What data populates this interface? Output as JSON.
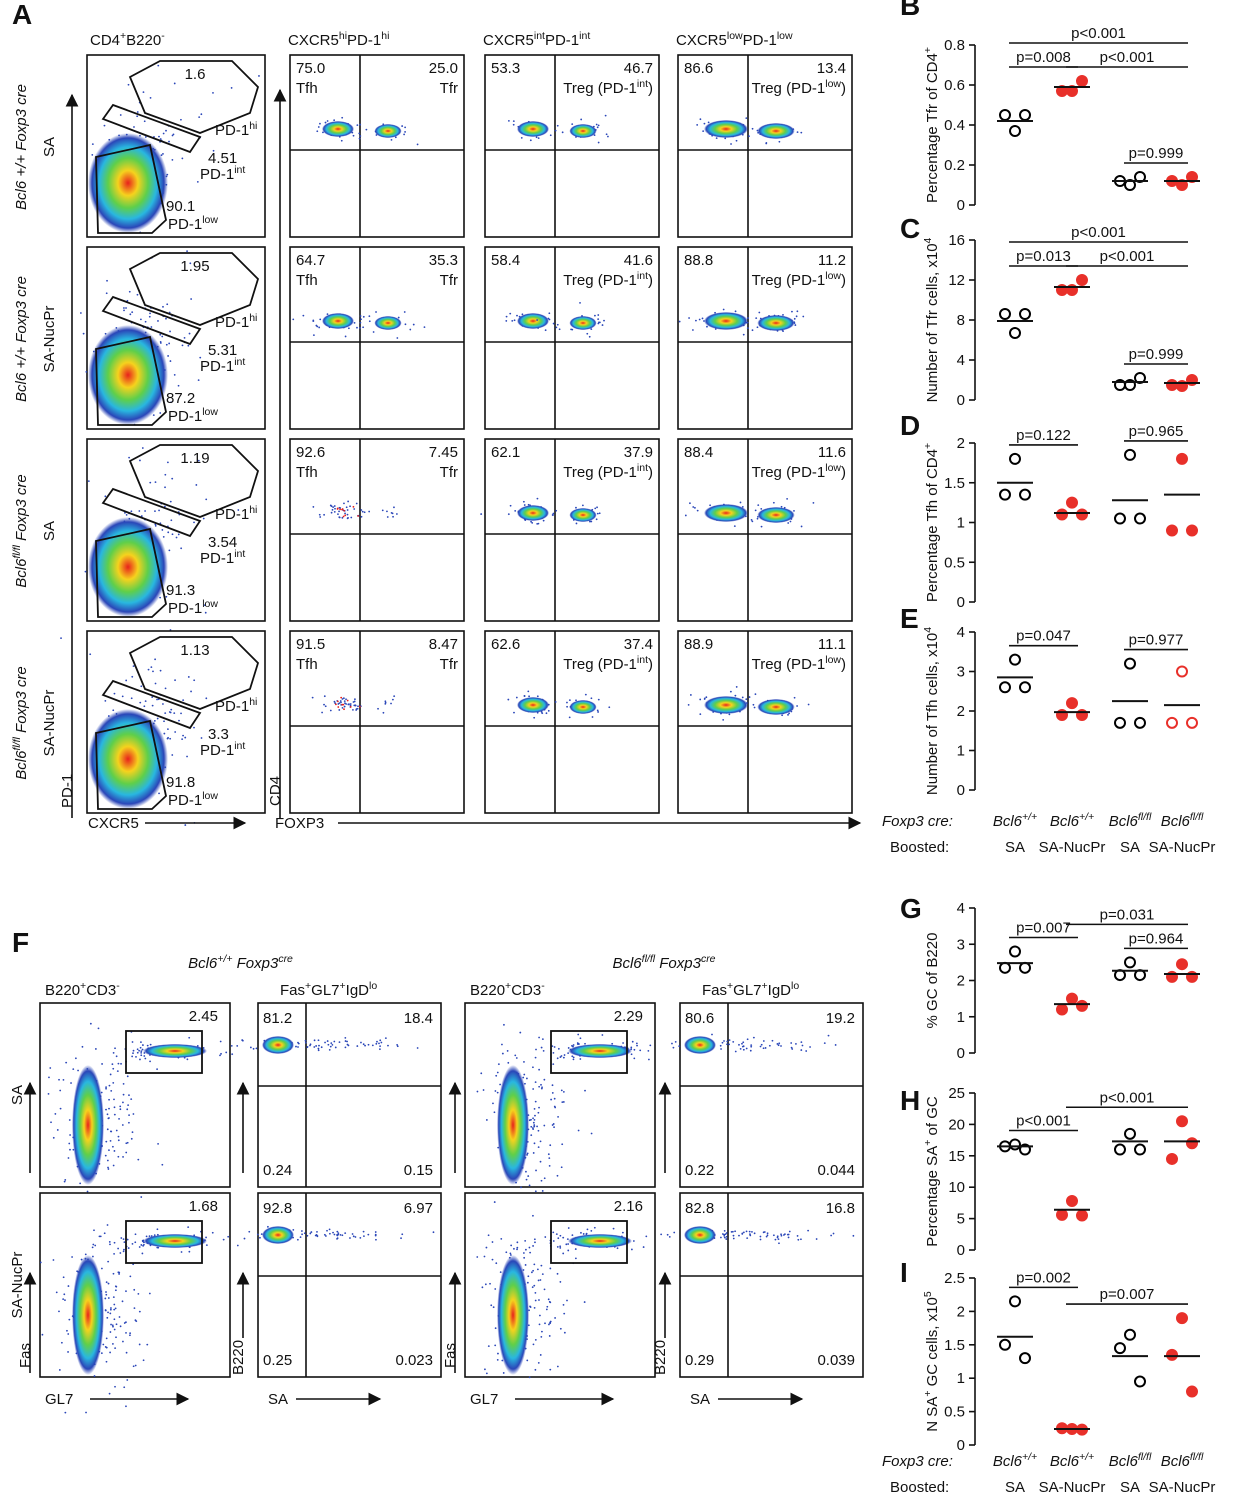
{
  "panel_A": {
    "letter": "A",
    "gate_title": [
      {
        "text": "CD4"
      },
      {
        "text": "+",
        "sup": true
      },
      {
        "text": "B220"
      },
      {
        "text": "-",
        "sup": true
      }
    ],
    "col_titles": [
      [
        {
          "text": "CXCR5"
        },
        {
          "text": "hi",
          "sup": true
        },
        {
          "text": "PD-1"
        },
        {
          "text": "hi",
          "sup": true
        }
      ],
      [
        {
          "text": "CXCR5"
        },
        {
          "text": "int",
          "sup": true
        },
        {
          "text": "PD-1"
        },
        {
          "text": "int",
          "sup": true
        }
      ],
      [
        {
          "text": "CXCR5"
        },
        {
          "text": "low",
          "sup": true
        },
        {
          "text": "PD-1"
        },
        {
          "text": "low",
          "sup": true
        }
      ]
    ],
    "gate_names": [
      [
        {
          "text": "PD-1"
        },
        {
          "text": "hi",
          "sup": true
        }
      ],
      [
        {
          "text": "PD-1"
        },
        {
          "text": "int",
          "sup": true
        }
      ],
      [
        {
          "text": "PD-1"
        },
        {
          "text": "low",
          "sup": true
        }
      ]
    ],
    "quad_labels": [
      {
        "left": "Tfh",
        "right": [
          {
            "text": "Tfr"
          }
        ]
      },
      {
        "right": [
          {
            "text": "Treg (PD-1"
          },
          {
            "text": "int",
            "sup": true
          },
          {
            "text": ")"
          }
        ]
      },
      {
        "right": [
          {
            "text": "Treg (PD-1"
          },
          {
            "text": "low",
            "sup": true
          },
          {
            "text": ")"
          }
        ]
      }
    ],
    "axes": {
      "gate_y": "PD-1",
      "gate_x": "CXCR5",
      "quad_y": "CD4",
      "quad_x": "FOXP3"
    },
    "rows": [
      {
        "genotype": [
          {
            "text": "Bcl6 +/+ Foxp3 cre"
          }
        ],
        "boost": "SA",
        "gates": [
          "1.6",
          "4.51",
          "90.1"
        ],
        "quads": [
          [
            "75.0",
            "25.0"
          ],
          [
            "53.3",
            "46.7"
          ],
          [
            "86.6",
            "13.4"
          ]
        ]
      },
      {
        "genotype": [
          {
            "text": "Bcl6 +/+ Foxp3 cre"
          }
        ],
        "boost": "SA-NucPr",
        "gates": [
          "1.95",
          "5.31",
          "87.2"
        ],
        "quads": [
          [
            "64.7",
            "35.3"
          ],
          [
            "58.4",
            "41.6"
          ],
          [
            "88.8",
            "11.2"
          ]
        ]
      },
      {
        "genotype": [
          {
            "text": "Bcl6"
          },
          {
            "text": "fl/fl",
            "sup": true
          },
          {
            "text": " Foxp3 cre"
          }
        ],
        "boost": "SA",
        "gates": [
          "1.19",
          "3.54",
          "91.3"
        ],
        "quads": [
          [
            "92.6",
            "7.45"
          ],
          [
            "62.1",
            "37.9"
          ],
          [
            "88.4",
            "11.6"
          ]
        ]
      },
      {
        "genotype": [
          {
            "text": "Bcl6"
          },
          {
            "text": "fl/fl",
            "sup": true
          },
          {
            "text": " Foxp3 cre"
          }
        ],
        "boost": "SA-NucPr",
        "gates": [
          "1.13",
          "3.3",
          "91.8"
        ],
        "quads": [
          [
            "91.5",
            "8.47"
          ],
          [
            "62.6",
            "37.4"
          ],
          [
            "88.9",
            "11.1"
          ]
        ]
      }
    ]
  },
  "panel_F": {
    "letter": "F",
    "row_labels": [
      "SA",
      "SA-NucPr"
    ],
    "axes": {
      "gate_y": "Fas",
      "gate_x": "GL7",
      "quad_y": "B220",
      "quad_x": "SA"
    },
    "sections": [
      {
        "title": [
          {
            "text": "Bcl6"
          },
          {
            "text": "+/+",
            "sup": true
          },
          {
            "text": " Foxp3"
          },
          {
            "text": "cre",
            "sup": true
          }
        ],
        "gate_title": [
          {
            "text": "B220"
          },
          {
            "text": "+",
            "sup": true
          },
          {
            "text": "CD3"
          },
          {
            "text": "-",
            "sup": true
          }
        ],
        "quad_title": [
          {
            "text": "Fas"
          },
          {
            "text": "+",
            "sup": true
          },
          {
            "text": "GL7"
          },
          {
            "text": "+",
            "sup": true
          },
          {
            "text": "IgD"
          },
          {
            "text": "lo",
            "sup": true
          }
        ],
        "rows": [
          {
            "gate": "2.45",
            "quads": [
              "81.2",
              "18.4",
              "0.24",
              "0.15"
            ]
          },
          {
            "gate": "1.68",
            "quads": [
              "92.8",
              "6.97",
              "0.25",
              "0.023"
            ]
          }
        ]
      },
      {
        "title": [
          {
            "text": "Bcl6"
          },
          {
            "text": "fl/fl",
            "sup": true
          },
          {
            "text": " Foxp3"
          },
          {
            "text": "cre",
            "sup": true
          }
        ],
        "gate_title": [
          {
            "text": "B220"
          },
          {
            "text": "+",
            "sup": true
          },
          {
            "text": "CD3"
          },
          {
            "text": "-",
            "sup": true
          }
        ],
        "quad_title": [
          {
            "text": "Fas"
          },
          {
            "text": "+",
            "sup": true
          },
          {
            "text": "GL7"
          },
          {
            "text": "+",
            "sup": true
          },
          {
            "text": "IgD"
          },
          {
            "text": "lo",
            "sup": true
          }
        ],
        "rows": [
          {
            "gate": "2.29",
            "quads": [
              "80.6",
              "19.2",
              "0.22",
              "0.044"
            ]
          },
          {
            "gate": "2.16",
            "quads": [
              "82.8",
              "16.8",
              "0.29",
              "0.039"
            ]
          }
        ]
      }
    ]
  },
  "group_labels": {
    "foxp3": "Foxp3 cre:",
    "boosted": "Boosted:",
    "genotypes": [
      [
        {
          "text": "Bcl6"
        },
        {
          "text": "+/+",
          "sup": true
        }
      ],
      [
        {
          "text": "Bcl6"
        },
        {
          "text": "+/+",
          "sup": true
        }
      ],
      [
        {
          "text": "Bcl6"
        },
        {
          "text": "fl/fl",
          "sup": true
        }
      ],
      [
        {
          "text": "Bcl6"
        },
        {
          "text": "fl/fl",
          "sup": true
        }
      ]
    ],
    "boosts": [
      "SA",
      "SA-NucPr",
      "SA",
      "SA-NucPr"
    ]
  },
  "chart_data": [
    {
      "type": "dot",
      "letter": "B",
      "ylabel": [
        {
          "text": "Percentage Tfr of CD4"
        },
        {
          "text": "+",
          "sup": true
        }
      ],
      "ylim": [
        0,
        0.8
      ],
      "yticks": [
        0,
        0.2,
        0.4,
        0.6,
        0.8
      ],
      "groups": [
        {
          "color": "#000000",
          "filled": false,
          "values": [
            0.45,
            0.45,
            0.37
          ],
          "mean": 0.42
        },
        {
          "color": "#e8302a",
          "filled": true,
          "values": [
            0.57,
            0.62,
            0.57
          ],
          "mean": 0.59
        },
        {
          "color": "#000000",
          "filled": false,
          "values": [
            0.12,
            0.14,
            0.1
          ],
          "mean": 0.12
        },
        {
          "color": "#e8302a",
          "filled": true,
          "values": [
            0.12,
            0.14,
            0.1
          ],
          "mean": 0.12
        }
      ],
      "comparisons": [
        {
          "groups": [
            0,
            3
          ],
          "label": "p<0.001"
        },
        {
          "groups": [
            0,
            1
          ],
          "label": "p=0.008"
        },
        {
          "groups": [
            1,
            3
          ],
          "label": "p<0.001"
        },
        {
          "groups": [
            2,
            3
          ],
          "label": "p=0.999"
        }
      ]
    },
    {
      "type": "dot",
      "letter": "C",
      "ylabel": [
        {
          "text": "Number of Tfr cells, x10"
        },
        {
          "text": "4",
          "sup": true
        }
      ],
      "ylim": [
        0,
        16
      ],
      "yticks": [
        0,
        4,
        8,
        12,
        16
      ],
      "groups": [
        {
          "color": "#000000",
          "filled": false,
          "values": [
            8.6,
            8.6,
            6.7
          ],
          "mean": 7.9
        },
        {
          "color": "#e8302a",
          "filled": true,
          "values": [
            11,
            12,
            11
          ],
          "mean": 11.3
        },
        {
          "color": "#000000",
          "filled": false,
          "values": [
            1.5,
            2.2,
            1.5
          ],
          "mean": 1.8
        },
        {
          "color": "#e8302a",
          "filled": true,
          "values": [
            1.5,
            2,
            1.4
          ],
          "mean": 1.7
        }
      ],
      "comparisons": [
        {
          "groups": [
            0,
            3
          ],
          "label": "p<0.001"
        },
        {
          "groups": [
            0,
            1
          ],
          "label": "p=0.013"
        },
        {
          "groups": [
            1,
            3
          ],
          "label": "p<0.001"
        },
        {
          "groups": [
            2,
            3
          ],
          "label": "p=0.999"
        }
      ]
    },
    {
      "type": "dot",
      "letter": "D",
      "ylabel": [
        {
          "text": "Percentage Tfh of CD4"
        },
        {
          "text": "+",
          "sup": true
        }
      ],
      "ylim": [
        0,
        2
      ],
      "yticks": [
        0,
        0.5,
        1,
        1.5,
        2
      ],
      "groups": [
        {
          "color": "#000000",
          "filled": false,
          "values": [
            1.35,
            1.35,
            1.8
          ],
          "mean": 1.5
        },
        {
          "color": "#e8302a",
          "filled": true,
          "values": [
            1.1,
            1.1,
            1.25
          ],
          "mean": 1.12
        },
        {
          "color": "#000000",
          "filled": false,
          "values": [
            1.05,
            1.05,
            1.85
          ],
          "mean": 1.28
        },
        {
          "color": "#e8302a",
          "filled": true,
          "values": [
            0.9,
            0.9,
            1.8
          ],
          "mean": 1.35
        }
      ],
      "comparisons": [
        {
          "groups": [
            0,
            1
          ],
          "label": "p=0.122"
        },
        {
          "groups": [
            2,
            3
          ],
          "label": "p=0.965"
        }
      ]
    },
    {
      "type": "dot",
      "letter": "E",
      "ylabel": [
        {
          "text": "Number of Tfh cells, x10"
        },
        {
          "text": "4",
          "sup": true
        }
      ],
      "ylim": [
        0,
        4
      ],
      "yticks": [
        0,
        1,
        2,
        3,
        4
      ],
      "groups": [
        {
          "color": "#000000",
          "filled": false,
          "values": [
            2.6,
            2.6,
            3.3
          ],
          "mean": 2.85
        },
        {
          "color": "#e8302a",
          "filled": true,
          "values": [
            1.9,
            1.9,
            2.2
          ],
          "mean": 1.97
        },
        {
          "color": "#000000",
          "filled": false,
          "values": [
            1.7,
            1.7,
            3.2
          ],
          "mean": 2.25
        },
        {
          "color": "#e8302a",
          "filled": false,
          "values": [
            1.7,
            1.7,
            3
          ],
          "mean": 2.15
        }
      ],
      "comparisons": [
        {
          "groups": [
            0,
            1
          ],
          "label": "p=0.047"
        },
        {
          "groups": [
            2,
            3
          ],
          "label": "p=0.977"
        }
      ]
    },
    {
      "type": "dot",
      "letter": "G",
      "ylabel": [
        {
          "text": "% GC of B220"
        }
      ],
      "ylim": [
        0,
        4
      ],
      "yticks": [
        0,
        1,
        2,
        3,
        4
      ],
      "groups": [
        {
          "color": "#000000",
          "filled": false,
          "values": [
            2.35,
            2.35,
            2.8
          ],
          "mean": 2.48
        },
        {
          "color": "#e8302a",
          "filled": true,
          "values": [
            1.2,
            1.3,
            1.5
          ],
          "mean": 1.35
        },
        {
          "color": "#000000",
          "filled": false,
          "values": [
            2.15,
            2.15,
            2.5
          ],
          "mean": 2.27
        },
        {
          "color": "#e8302a",
          "filled": true,
          "values": [
            2.1,
            2.1,
            2.45
          ],
          "mean": 2.18
        }
      ],
      "comparisons": [
        {
          "groups": [
            0,
            1
          ],
          "label": "p=0.007"
        },
        {
          "groups": [
            1,
            3
          ],
          "label": "p=0.031"
        },
        {
          "groups": [
            2,
            3
          ],
          "label": "p=0.964"
        }
      ]
    },
    {
      "type": "dot",
      "letter": "H",
      "ylabel": [
        {
          "text": "Percentage SA"
        },
        {
          "text": "+",
          "sup": true
        },
        {
          "text": " of GC"
        }
      ],
      "ylim": [
        0,
        25
      ],
      "yticks": [
        0,
        5,
        10,
        15,
        20,
        25
      ],
      "groups": [
        {
          "color": "#000000",
          "filled": false,
          "values": [
            16.5,
            16,
            16.8
          ],
          "mean": 16.5
        },
        {
          "color": "#e8302a",
          "filled": true,
          "values": [
            5.6,
            5.5,
            7.8
          ],
          "mean": 6.4
        },
        {
          "color": "#000000",
          "filled": false,
          "values": [
            16,
            16,
            18.5
          ],
          "mean": 17.3
        },
        {
          "color": "#e8302a",
          "filled": true,
          "values": [
            14.5,
            17,
            20.5
          ],
          "mean": 17.3
        }
      ],
      "comparisons": [
        {
          "groups": [
            0,
            1
          ],
          "label": "p<0.001"
        },
        {
          "groups": [
            1,
            3
          ],
          "label": "p<0.001"
        }
      ]
    },
    {
      "type": "dot",
      "letter": "I",
      "ylabel": [
        {
          "text": "N SA"
        },
        {
          "text": "+",
          "sup": true
        },
        {
          "text": " GC cells, x10"
        },
        {
          "text": "5",
          "sup": true
        }
      ],
      "ylim": [
        0,
        2.5
      ],
      "yticks": [
        0,
        0.5,
        1,
        1.5,
        2,
        2.5
      ],
      "groups": [
        {
          "color": "#000000",
          "filled": false,
          "values": [
            1.5,
            1.3,
            2.15
          ],
          "mean": 1.62
        },
        {
          "color": "#e8302a",
          "filled": true,
          "values": [
            0.25,
            0.23,
            0.24
          ],
          "mean": 0.24
        },
        {
          "color": "#000000",
          "filled": false,
          "values": [
            1.45,
            0.95,
            1.65
          ],
          "mean": 1.33
        },
        {
          "color": "#e8302a",
          "filled": true,
          "values": [
            1.35,
            0.8,
            1.9
          ],
          "mean": 1.33
        }
      ],
      "comparisons": [
        {
          "groups": [
            0,
            1
          ],
          "label": "p=0.002"
        },
        {
          "groups": [
            1,
            3
          ],
          "label": "p=0.007"
        }
      ]
    }
  ]
}
